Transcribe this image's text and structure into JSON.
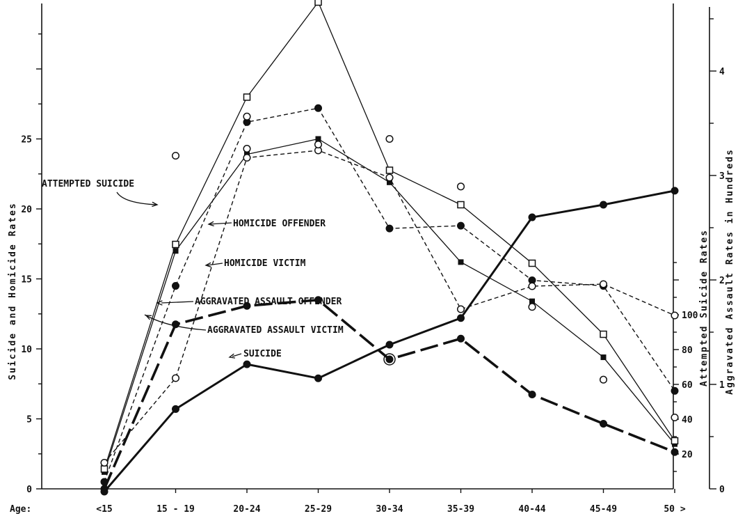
{
  "chart_data": {
    "type": "line",
    "categories": [
      "<15",
      "15 - 19",
      "20-24",
      "25-29",
      "30-34",
      "35-39",
      "40-44",
      "45-49",
      "50 >"
    ],
    "x_axis_prefix": "Age:",
    "left_axis": {
      "title": "Suicide and Homicide Rates",
      "ticks": [
        "0",
        "5",
        "10",
        "15",
        "20",
        "25"
      ],
      "ylim": [
        0,
        35
      ]
    },
    "right_axis_1": {
      "title": "Attempted Suicide Rates",
      "ticks": [
        "20",
        "40",
        "60",
        "80",
        "100"
      ],
      "ylim": [
        0,
        140
      ]
    },
    "right_axis_2": {
      "title": "Aggravated Assault Rates in Hundreds",
      "ticks": [
        "0",
        "1",
        "2",
        "3",
        "4"
      ],
      "ylim": [
        0,
        4.65
      ]
    },
    "grid": false,
    "legend": "none (direct labels)",
    "series": [
      {
        "name": "ATTEMPTED SUICIDE",
        "axis": "right_axis_1",
        "values": [
          0,
          94.5,
          105.1,
          108.5,
          74.4,
          86.3,
          54.2,
          37.4,
          21.1
        ]
      },
      {
        "name": "HOMICIDE OFFENDER",
        "axis": "left",
        "values": [
          1.2,
          17.0,
          23.9,
          25.0,
          21.9,
          16.2,
          13.4,
          9.4,
          3.2
        ]
      },
      {
        "name": "HOMICIDE VICTIM",
        "axis": "left",
        "values": [
          0.5,
          14.5,
          26.2,
          27.2,
          18.6,
          18.8,
          14.9,
          14.5,
          7.0
        ]
      },
      {
        "name": "AGGRAVATED ASSAULT OFFENDER",
        "axis": "right_axis_2",
        "values": [
          0.19,
          2.34,
          3.75,
          4.66,
          3.05,
          2.72,
          2.16,
          1.48,
          0.46
        ]
      },
      {
        "name": "AGGRAVATED ASSAULT VICTIM",
        "axis": "right_axis_2",
        "values": [
          0.25,
          1.06,
          3.17,
          3.24,
          2.98,
          1.72,
          1.94,
          1.96,
          1.66
        ]
      },
      {
        "name": "SUICIDE",
        "axis": "left",
        "values": [
          -0.2,
          5.7,
          8.9,
          7.9,
          10.3,
          12.2,
          19.4,
          20.3,
          21.3
        ]
      }
    ],
    "extra_marks": [
      {
        "series": "AGGRAVATED ASSAULT VICTIM",
        "category": "15 - 19",
        "value": 23.8
      },
      {
        "series": "AGGRAVATED ASSAULT VICTIM",
        "category": "20-24",
        "value": 24.3
      },
      {
        "series": "AGGRAVATED ASSAULT VICTIM",
        "category": "25-29",
        "value": 24.6
      },
      {
        "series": "AGGRAVATED ASSAULT VICTIM",
        "category": "30-34",
        "value": 25.0
      },
      {
        "series": "AGGRAVATED ASSAULT VICTIM",
        "category": "35-39",
        "value": 21.6
      },
      {
        "series": "AGGRAVATED ASSAULT VICTIM",
        "category": "40-44",
        "value": 13.0
      },
      {
        "series": "AGGRAVATED ASSAULT VICTIM",
        "category": "45-49",
        "value": 7.8
      },
      {
        "series": "AGGRAVATED ASSAULT VICTIM",
        "category": "50 >",
        "value": 5.1
      },
      {
        "series": "HOMICIDE VICTIM",
        "category": "20-24",
        "value": 26.6
      }
    ]
  }
}
